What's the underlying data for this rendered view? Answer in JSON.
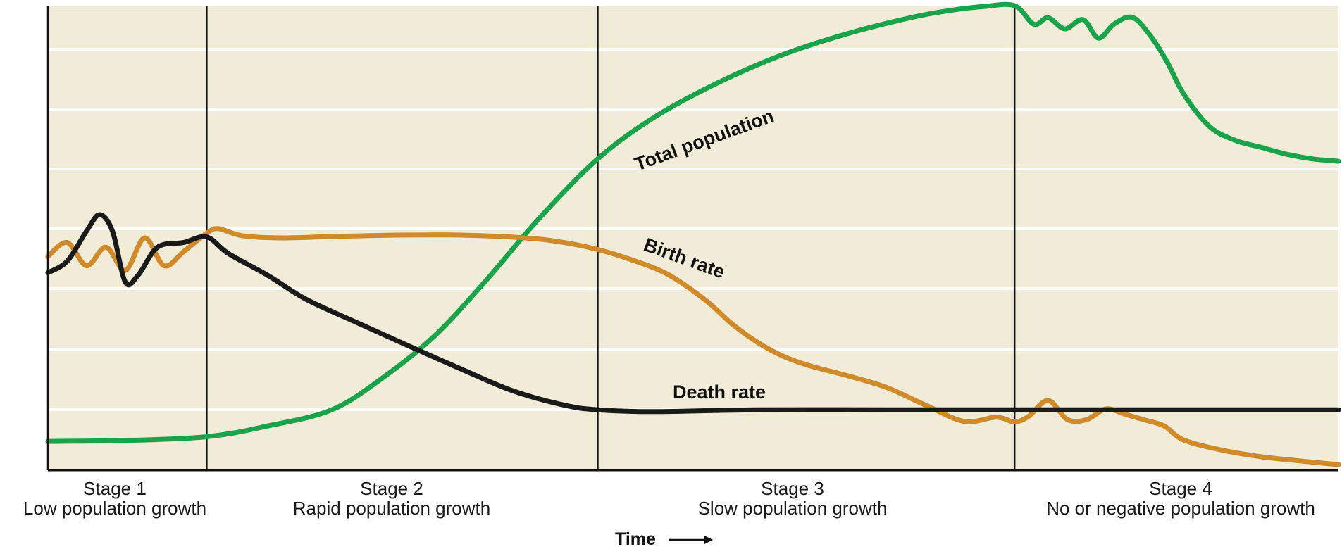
{
  "chart_data": {
    "type": "line",
    "title": "",
    "xlabel": "Time",
    "ylabel": "",
    "xlim": [
      0,
      100
    ],
    "ylim": [
      0,
      100
    ],
    "grid": true,
    "legend": "inline curve labels",
    "background_color": "#f0ecd8",
    "stages": [
      {
        "number": "Stage 1",
        "description": "Low population growth",
        "start": 0,
        "end": 12.3
      },
      {
        "number": "Stage 2",
        "description": "Rapid population growth",
        "start": 12.3,
        "end": 42.6
      },
      {
        "number": "Stage 3",
        "description": "Slow population growth",
        "start": 42.6,
        "end": 74.9
      },
      {
        "number": "Stage 4",
        "description": "No or negative population growth",
        "start": 74.9,
        "end": 100
      }
    ],
    "series": [
      {
        "name": "Total population",
        "color": "#1aa34a",
        "x": [
          0,
          6,
          12.3,
          17,
          22,
          26,
          30,
          34,
          38,
          42.6,
          47,
          52,
          57,
          62,
          67,
          70,
          72.5,
          74.9,
          76.4,
          77.5,
          78.8,
          80.2,
          81.4,
          82.6,
          84,
          85.3,
          86.7,
          88,
          90,
          92,
          94,
          96,
          98,
          100
        ],
        "y": [
          6.2,
          6.4,
          7.2,
          9.5,
          13,
          20,
          29,
          41,
          54,
          67,
          76,
          83.5,
          89.5,
          94,
          97.5,
          99,
          99.8,
          100,
          96,
          97.4,
          95,
          97,
          93,
          96,
          97.5,
          94,
          88,
          81,
          74,
          71,
          69.5,
          68,
          67,
          66.5
        ],
        "label_text": "Total population"
      },
      {
        "name": "Birth rate",
        "color": "#d08a2a",
        "x": [
          0,
          1.5,
          3,
          4.5,
          6,
          7.5,
          9,
          10.5,
          12.3,
          13.2,
          15,
          18,
          22,
          27,
          32,
          37,
          40,
          42.6,
          45,
          48,
          51,
          53,
          55,
          57,
          59,
          62,
          65,
          68,
          71,
          73.5,
          74.9,
          76,
          77.5,
          79,
          80.5,
          82,
          83.5,
          85,
          86.5,
          88,
          91,
          94,
          97,
          100
        ],
        "y": [
          46,
          49,
          44,
          48,
          43,
          50,
          44,
          47,
          51,
          52,
          50.5,
          50,
          50.3,
          50.6,
          50.6,
          50,
          49,
          47.5,
          45.5,
          42.2,
          36.5,
          31.5,
          27.5,
          24.5,
          22.5,
          20.3,
          17.8,
          14,
          10.5,
          11.4,
          10.4,
          11.6,
          15,
          10.9,
          10.9,
          13.2,
          12,
          10.8,
          9.5,
          6.5,
          4.3,
          2.9,
          2,
          1.2
        ],
        "label_text": "Birth rate"
      },
      {
        "name": "Death rate",
        "color": "#1a1a1a",
        "x": [
          0,
          1.5,
          3,
          4,
          5,
          6,
          7,
          8.5,
          10.5,
          12.3,
          14,
          17,
          20,
          24,
          28,
          32,
          36,
          40,
          42.6,
          47,
          55,
          65,
          74.9,
          85,
          95,
          100
        ],
        "y": [
          42.5,
          45,
          51.5,
          55,
          51.5,
          40.5,
          42,
          48,
          49,
          50.2,
          46.6,
          42,
          36.8,
          31.7,
          26.7,
          21.8,
          17.1,
          14,
          13,
          12.6,
          13,
          13,
          13,
          13,
          13,
          13
        ],
        "label_text": "Death rate"
      }
    ]
  }
}
